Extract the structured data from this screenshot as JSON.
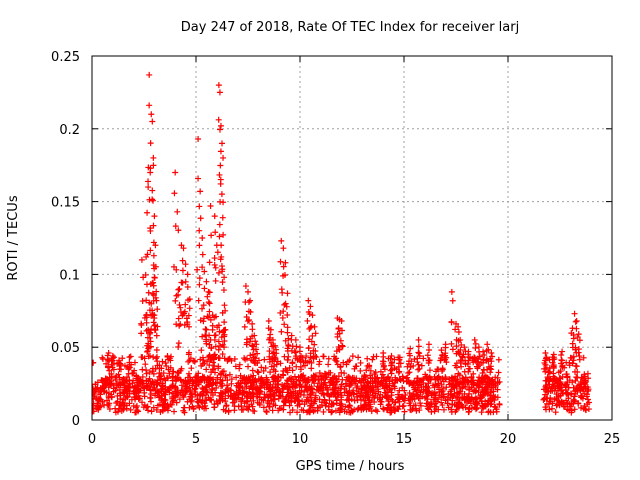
{
  "chart_data": {
    "type": "scatter",
    "title": "Day 247 of 2018, Rate Of TEC Index for receiver larj",
    "xlabel": "GPS time / hours",
    "ylabel": "ROTI / TECUs",
    "xlim": [
      0,
      25
    ],
    "ylim": [
      0,
      0.25
    ],
    "x_ticks": [
      0,
      5,
      10,
      15,
      20,
      25
    ],
    "x_tick_labels": [
      "0",
      "5",
      "10",
      "15",
      "20",
      "25"
    ],
    "y_ticks": [
      0,
      0.05,
      0.1,
      0.15,
      0.2,
      0.25
    ],
    "y_tick_labels": [
      "0",
      "0.05",
      "0.1",
      "0.15",
      "0.2",
      "0.25"
    ],
    "grid": true,
    "marker": "+",
    "color": "#ff0000",
    "data_gaps_hours": [
      [
        19.6,
        21.7
      ]
    ],
    "baseline_band": {
      "x_ranges": [
        [
          0,
          19.6
        ],
        [
          21.7,
          23.9
        ]
      ],
      "y_min": 0.005,
      "y_max": 0.03
    },
    "bursts": [
      {
        "x": [
          0.8,
          1.0,
          1.3
        ],
        "y": [
          0.046,
          0.044,
          0.041
        ]
      },
      {
        "x": [
          2.4,
          2.6,
          2.7,
          2.75,
          2.8,
          2.85,
          2.9,
          2.95,
          3.0,
          3.05
        ],
        "y": [
          0.11,
          0.112,
          0.16,
          0.237,
          0.17,
          0.21,
          0.205,
          0.18,
          0.14,
          0.12
        ]
      },
      {
        "x": [
          2.6,
          2.7,
          2.8,
          2.9,
          3.0,
          3.1
        ],
        "y": [
          0.072,
          0.062,
          0.06,
          0.094,
          0.098,
          0.082
        ]
      },
      {
        "x": [
          4.0,
          4.1,
          4.2,
          4.3,
          4.4,
          4.5,
          4.6,
          4.7
        ],
        "y": [
          0.17,
          0.143,
          0.09,
          0.12,
          0.118,
          0.107,
          0.1,
          0.083
        ]
      },
      {
        "x": [
          5.1,
          5.2,
          5.3,
          5.4,
          5.5,
          5.6,
          5.7,
          5.8
        ],
        "y": [
          0.193,
          0.157,
          0.125,
          0.102,
          0.095,
          0.088,
          0.147,
          0.072
        ]
      },
      {
        "x": [
          5.9,
          6.0,
          6.1,
          6.15,
          6.2,
          6.25,
          6.3,
          6.35,
          6.4
        ],
        "y": [
          0.14,
          0.12,
          0.23,
          0.225,
          0.202,
          0.19,
          0.18,
          0.098,
          0.075
        ]
      },
      {
        "x": [
          5.5,
          5.7,
          5.9,
          6.1,
          6.3
        ],
        "y": [
          0.062,
          0.055,
          0.058,
          0.065,
          0.06
        ]
      },
      {
        "x": [
          7.4,
          7.5,
          7.6,
          7.7,
          7.8,
          7.9
        ],
        "y": [
          0.092,
          0.088,
          0.082,
          0.066,
          0.058,
          0.052
        ]
      },
      {
        "x": [
          8.5,
          8.6,
          8.7,
          8.8
        ],
        "y": [
          0.068,
          0.062,
          0.055,
          0.051
        ]
      },
      {
        "x": [
          9.1,
          9.2,
          9.3,
          9.4
        ],
        "y": [
          0.123,
          0.118,
          0.108,
          0.087
        ]
      },
      {
        "x": [
          9.4,
          9.6,
          9.8,
          10.0
        ],
        "y": [
          0.06,
          0.058,
          0.055,
          0.05
        ]
      },
      {
        "x": [
          10.4,
          10.5,
          10.6,
          10.7
        ],
        "y": [
          0.082,
          0.078,
          0.072,
          0.064
        ]
      },
      {
        "x": [
          11.8,
          11.9,
          12.0
        ],
        "y": [
          0.07,
          0.069,
          0.068
        ]
      },
      {
        "x": [
          14.0,
          14.4,
          14.8,
          15.3,
          15.7,
          16.2
        ],
        "y": [
          0.046,
          0.044,
          0.043,
          0.049,
          0.055,
          0.052
        ]
      },
      {
        "x": [
          16.8,
          17.0,
          17.3,
          17.5,
          17.6,
          17.7,
          17.9,
          18.1
        ],
        "y": [
          0.048,
          0.052,
          0.088,
          0.066,
          0.064,
          0.055,
          0.05,
          0.047
        ]
      },
      {
        "x": [
          18.4,
          18.6,
          18.8,
          19.0,
          19.2
        ],
        "y": [
          0.055,
          0.05,
          0.047,
          0.052,
          0.046
        ]
      },
      {
        "x": [
          21.8,
          22.2,
          22.6,
          23.1,
          23.2,
          23.3,
          23.4
        ],
        "y": [
          0.046,
          0.045,
          0.047,
          0.063,
          0.073,
          0.068,
          0.059
        ]
      }
    ]
  }
}
